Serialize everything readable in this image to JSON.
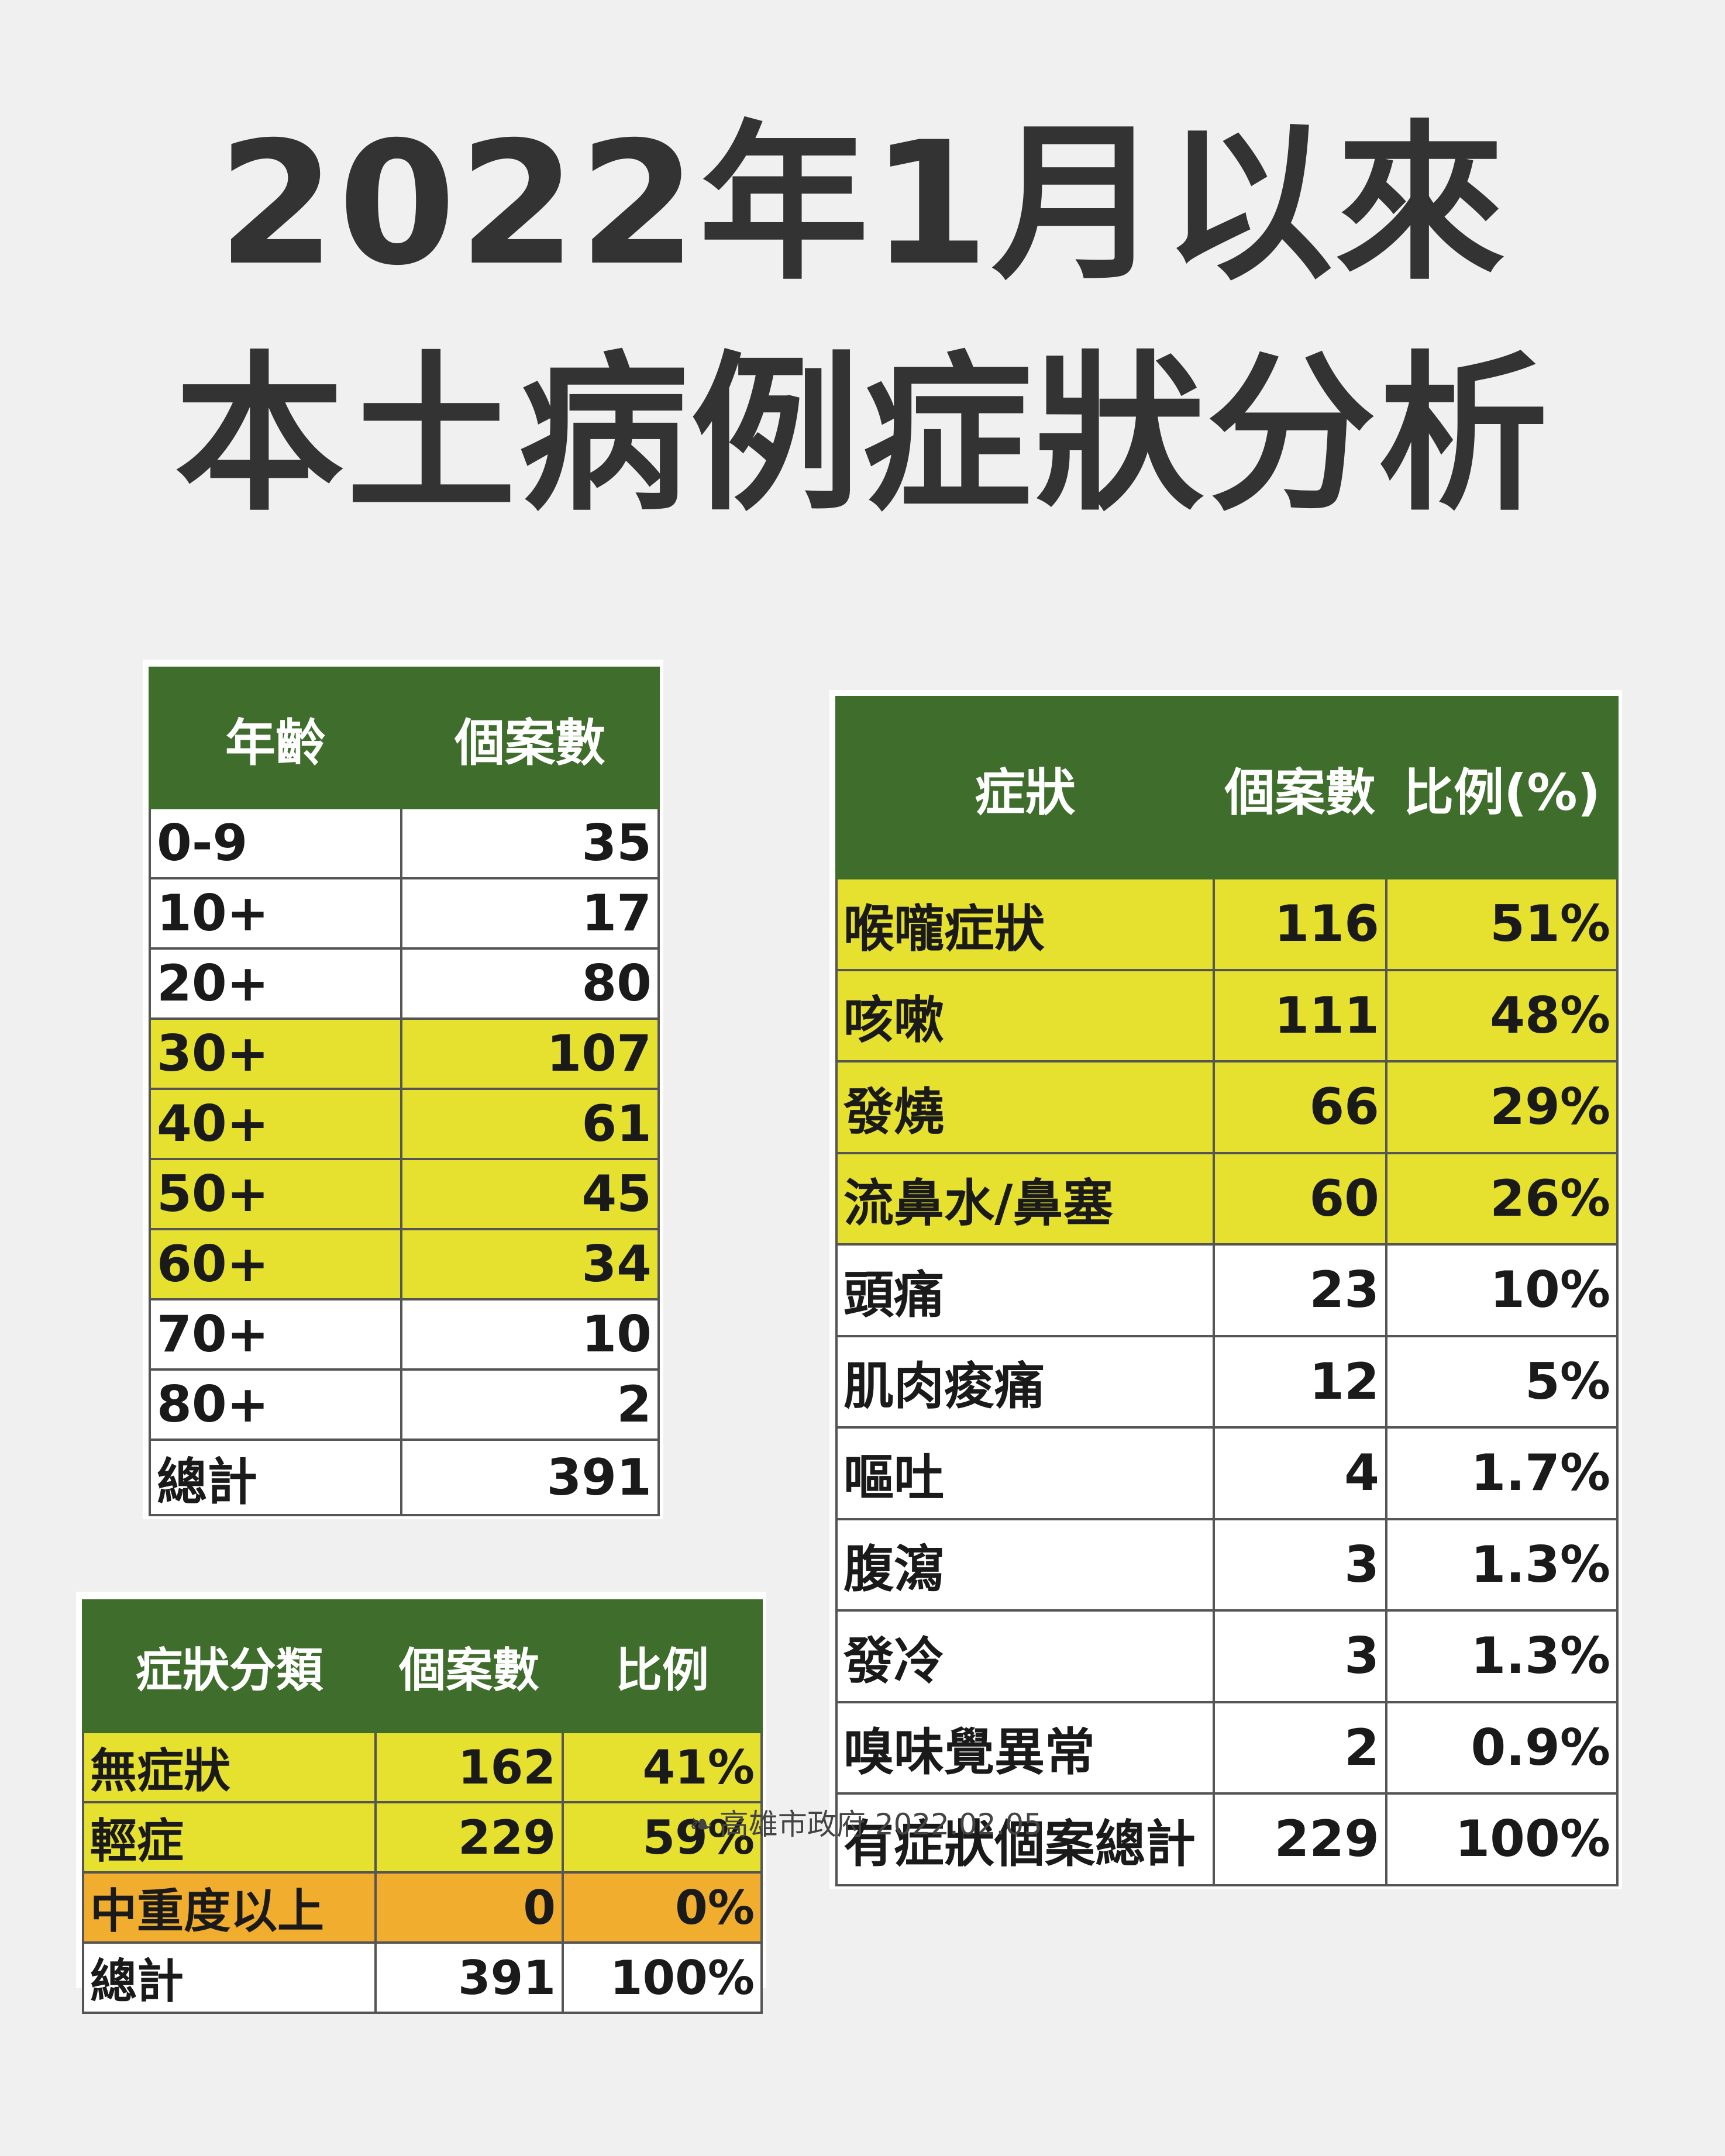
{
  "title": {
    "line1": "2022年1月以來",
    "line2": "本土病例症狀分析"
  },
  "age_table": {
    "headers": [
      "年齡",
      "個案數"
    ],
    "rows": [
      {
        "age": "0-9",
        "count": "35",
        "highlight": false
      },
      {
        "age": "10+",
        "count": "17",
        "highlight": false
      },
      {
        "age": "20+",
        "count": "80",
        "highlight": false
      },
      {
        "age": "30+",
        "count": "107",
        "highlight": true
      },
      {
        "age": "40+",
        "count": "61",
        "highlight": true
      },
      {
        "age": "50+",
        "count": "45",
        "highlight": true
      },
      {
        "age": "60+",
        "count": "34",
        "highlight": true
      },
      {
        "age": "70+",
        "count": "10",
        "highlight": false
      },
      {
        "age": "80+",
        "count": "2",
        "highlight": false
      },
      {
        "age": "總計",
        "count": "391",
        "highlight": false
      }
    ]
  },
  "symptom_table": {
    "headers": [
      "症狀",
      "個案數",
      "比例(%)"
    ],
    "rows": [
      {
        "symptom": "喉嚨症狀",
        "count": "116",
        "pct": "51%",
        "highlight": true
      },
      {
        "symptom": "咳嗽",
        "count": "111",
        "pct": "48%",
        "highlight": true
      },
      {
        "symptom": "發燒",
        "count": "66",
        "pct": "29%",
        "highlight": true
      },
      {
        "symptom": "流鼻水/鼻塞",
        "count": "60",
        "pct": "26%",
        "highlight": true
      },
      {
        "symptom": "頭痛",
        "count": "23",
        "pct": "10%",
        "highlight": false
      },
      {
        "symptom": "肌肉痠痛",
        "count": "12",
        "pct": "5%",
        "highlight": false
      },
      {
        "symptom": "嘔吐",
        "count": "4",
        "pct": "1.7%",
        "highlight": false
      },
      {
        "symptom": "腹瀉",
        "count": "3",
        "pct": "1.3%",
        "highlight": false
      },
      {
        "symptom": "發冷",
        "count": "3",
        "pct": "1.3%",
        "highlight": false
      },
      {
        "symptom": "嗅味覺異常",
        "count": "2",
        "pct": "0.9%",
        "highlight": false
      },
      {
        "symptom": "有症狀個案總計",
        "count": "229",
        "pct": "100%",
        "highlight": false
      }
    ]
  },
  "category_table": {
    "headers": [
      "症狀分類",
      "個案數",
      "比例"
    ],
    "rows": [
      {
        "category": "無症狀",
        "count": "162",
        "pct": "41%",
        "style": "yellow"
      },
      {
        "category": "輕症",
        "count": "229",
        "pct": "59%",
        "style": "yellow"
      },
      {
        "category": "中重度以上",
        "count": "0",
        "pct": "0%",
        "style": "orange"
      },
      {
        "category": "總計",
        "count": "391",
        "pct": "100%",
        "style": "none"
      }
    ]
  },
  "footer": {
    "logo": "高",
    "text": "高雄市政府 2022.02.05"
  },
  "colors": {
    "header_green": "#3f6e2c",
    "highlight_yellow": "#e6e02f",
    "highlight_orange": "#f0ad2e",
    "title": "#333333"
  }
}
